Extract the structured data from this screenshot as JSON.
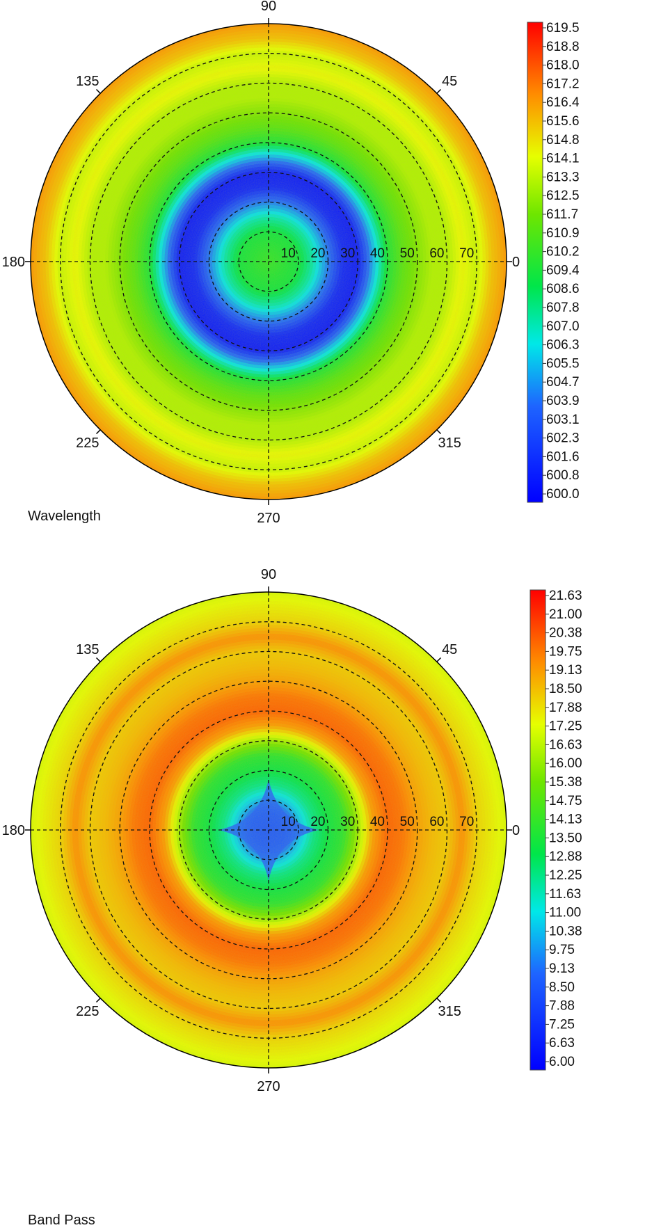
{
  "chart_data": [
    {
      "type": "heatmap",
      "projection": "polar",
      "title": "Wavelength",
      "angle_labels": [
        "0",
        "45",
        "90",
        "135",
        "180",
        "225",
        "270",
        "315"
      ],
      "radial_labels": [
        "10",
        "20",
        "30",
        "40",
        "50",
        "60",
        "70"
      ],
      "radial_max": 80,
      "radial_profile": {
        "r": [
          0,
          10,
          15,
          20,
          25,
          30,
          35,
          40,
          45,
          50,
          55,
          60,
          65,
          70,
          75,
          80
        ],
        "values": [
          610.5,
          609.5,
          607.5,
          604.5,
          601.5,
          601.0,
          605.5,
          609.8,
          611.5,
          612.5,
          613.5,
          613.5,
          614.8,
          614.0,
          616.0,
          617.0
        ]
      },
      "colorbar": {
        "ticks": [
          "619.5",
          "618.8",
          "618.0",
          "617.2",
          "616.4",
          "615.6",
          "614.8",
          "614.1",
          "613.3",
          "612.5",
          "611.7",
          "610.9",
          "610.2",
          "609.4",
          "608.6",
          "607.8",
          "607.0",
          "606.3",
          "605.5",
          "604.7",
          "603.9",
          "603.1",
          "602.3",
          "601.6",
          "600.8",
          "600.0"
        ],
        "min": 600.0,
        "max": 620.3,
        "min_color": "#ff3333"
      }
    },
    {
      "type": "heatmap",
      "projection": "polar",
      "title": "Band Pass",
      "angle_labels": [
        "0",
        "45",
        "90",
        "135",
        "180",
        "225",
        "270",
        "315"
      ],
      "radial_labels": [
        "10",
        "20",
        "30",
        "40",
        "50",
        "60",
        "70"
      ],
      "radial_max": 80,
      "radial_profile": {
        "r": [
          0,
          5,
          10,
          15,
          20,
          25,
          30,
          35,
          40,
          45,
          50,
          55,
          60,
          65,
          70,
          75,
          80
        ],
        "values": [
          7.0,
          7.8,
          10.5,
          12.5,
          13.5,
          14.2,
          16.5,
          19.5,
          20.6,
          20.3,
          19.5,
          19.0,
          18.7,
          19.8,
          18.5,
          18.0,
          17.5
        ]
      },
      "colorbar": {
        "ticks": [
          "21.63",
          "21.00",
          "20.38",
          "19.75",
          "19.13",
          "18.50",
          "17.88",
          "17.25",
          "16.63",
          "16.00",
          "15.38",
          "14.75",
          "14.13",
          "13.50",
          "12.88",
          "12.25",
          "11.63",
          "11.00",
          "10.38",
          "9.75",
          "9.13",
          "8.50",
          "7.88",
          "7.25",
          "6.63",
          "6.00"
        ],
        "min": 6.0,
        "max": 22.3,
        "min_color": "#ff3333"
      }
    }
  ]
}
